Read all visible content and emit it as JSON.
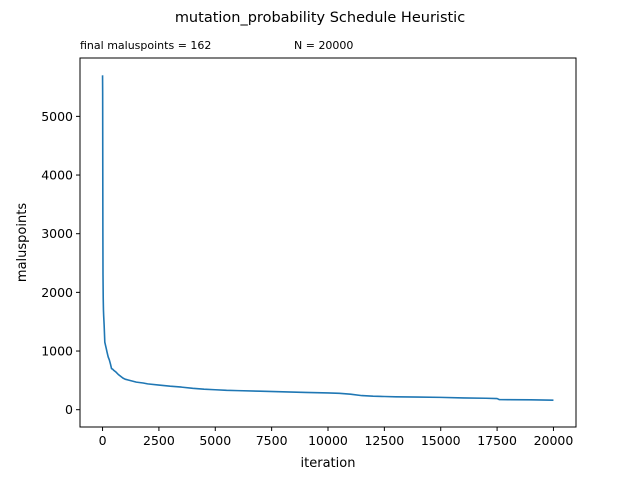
{
  "chart_data": {
    "type": "line",
    "title": "mutation_probability Schedule Heuristic",
    "annotations": [
      "final maluspoints = 162",
      "N = 20000"
    ],
    "xlabel": "iteration",
    "ylabel": "maluspoints",
    "xlim": [
      -1000,
      21000
    ],
    "ylim": [
      -295,
      5995
    ],
    "xticks": [
      0,
      2500,
      5000,
      7500,
      10000,
      12500,
      15000,
      17500,
      20000
    ],
    "yticks": [
      0,
      1000,
      2000,
      3000,
      4000,
      5000
    ],
    "grid": false,
    "line_color": "#1f77b4",
    "series": [
      {
        "x": [
          0,
          5,
          10,
          15,
          20,
          30,
          40,
          50,
          70,
          100,
          130,
          160,
          200,
          250,
          300,
          350,
          400,
          450,
          500,
          600,
          700,
          800,
          900,
          1000,
          1200,
          1500,
          1800,
          2000,
          2500,
          3000,
          3500,
          4000,
          4500,
          5000,
          5500,
          6000,
          7000,
          8000,
          9000,
          10000,
          10500,
          11000,
          11500,
          12000,
          12500,
          13000,
          14000,
          15000,
          16000,
          17000,
          17500,
          17600,
          18000,
          19000,
          20000
        ],
        "y": [
          5700,
          5400,
          4200,
          3000,
          2300,
          1900,
          1700,
          1600,
          1450,
          1150,
          1100,
          1050,
          980,
          900,
          850,
          780,
          700,
          690,
          670,
          640,
          600,
          570,
          540,
          520,
          500,
          470,
          455,
          440,
          420,
          400,
          385,
          365,
          350,
          340,
          330,
          325,
          315,
          305,
          295,
          285,
          280,
          265,
          240,
          230,
          225,
          220,
          215,
          210,
          200,
          195,
          190,
          172,
          170,
          168,
          162
        ]
      }
    ]
  }
}
